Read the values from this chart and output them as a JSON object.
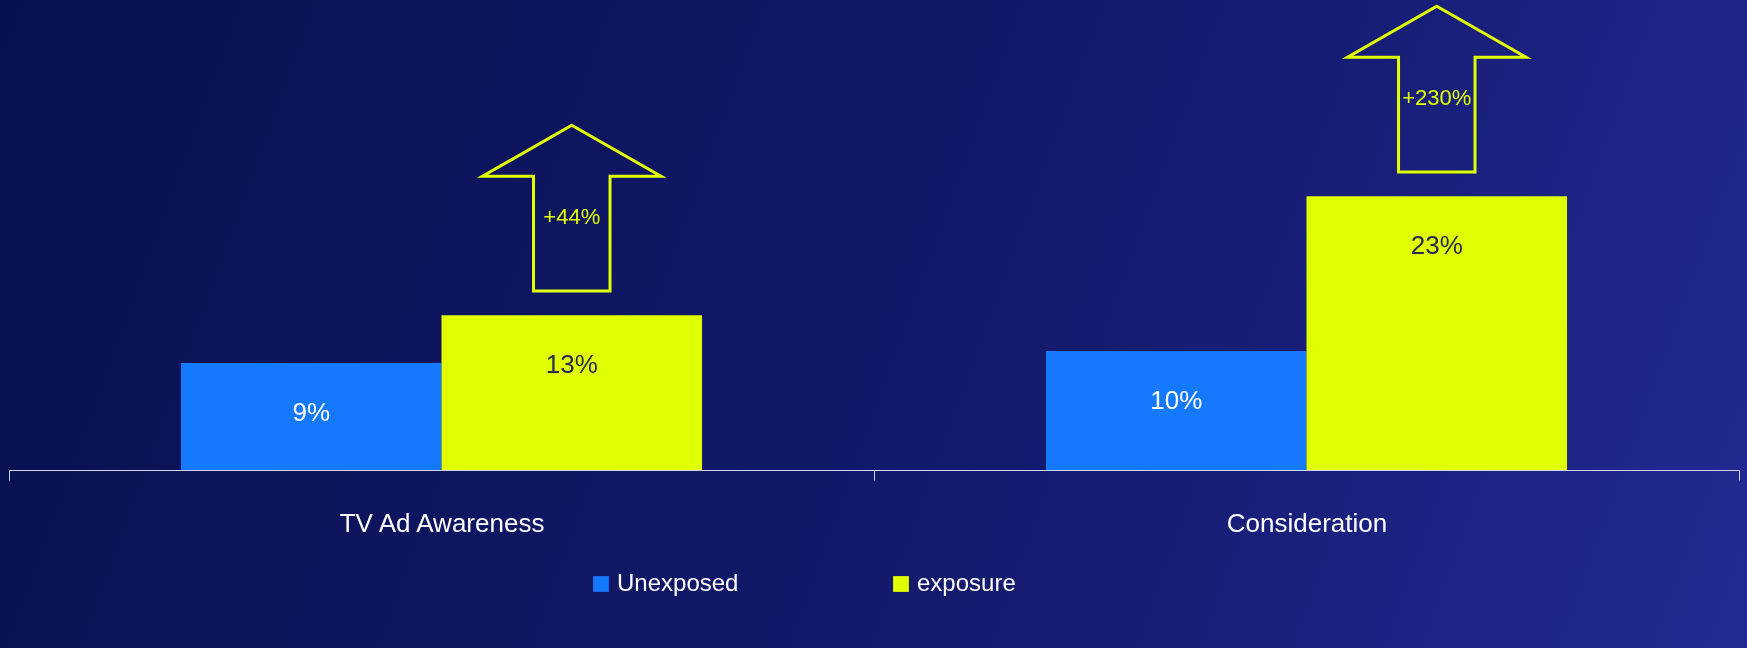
{
  "chart_data": {
    "type": "bar",
    "categories": [
      "TV Ad Awareness",
      "Consideration"
    ],
    "series": [
      {
        "name": "Unexposed",
        "color": "#1479ff",
        "values": [
          9,
          10
        ],
        "value_labels": [
          "9%",
          "10%"
        ]
      },
      {
        "name": "exposure",
        "color": "#e0ff00",
        "values": [
          13,
          23
        ],
        "value_labels": [
          "13%",
          "23%"
        ]
      }
    ],
    "annotations": [
      "+44%",
      "+230%"
    ],
    "legend": "bottom"
  }
}
